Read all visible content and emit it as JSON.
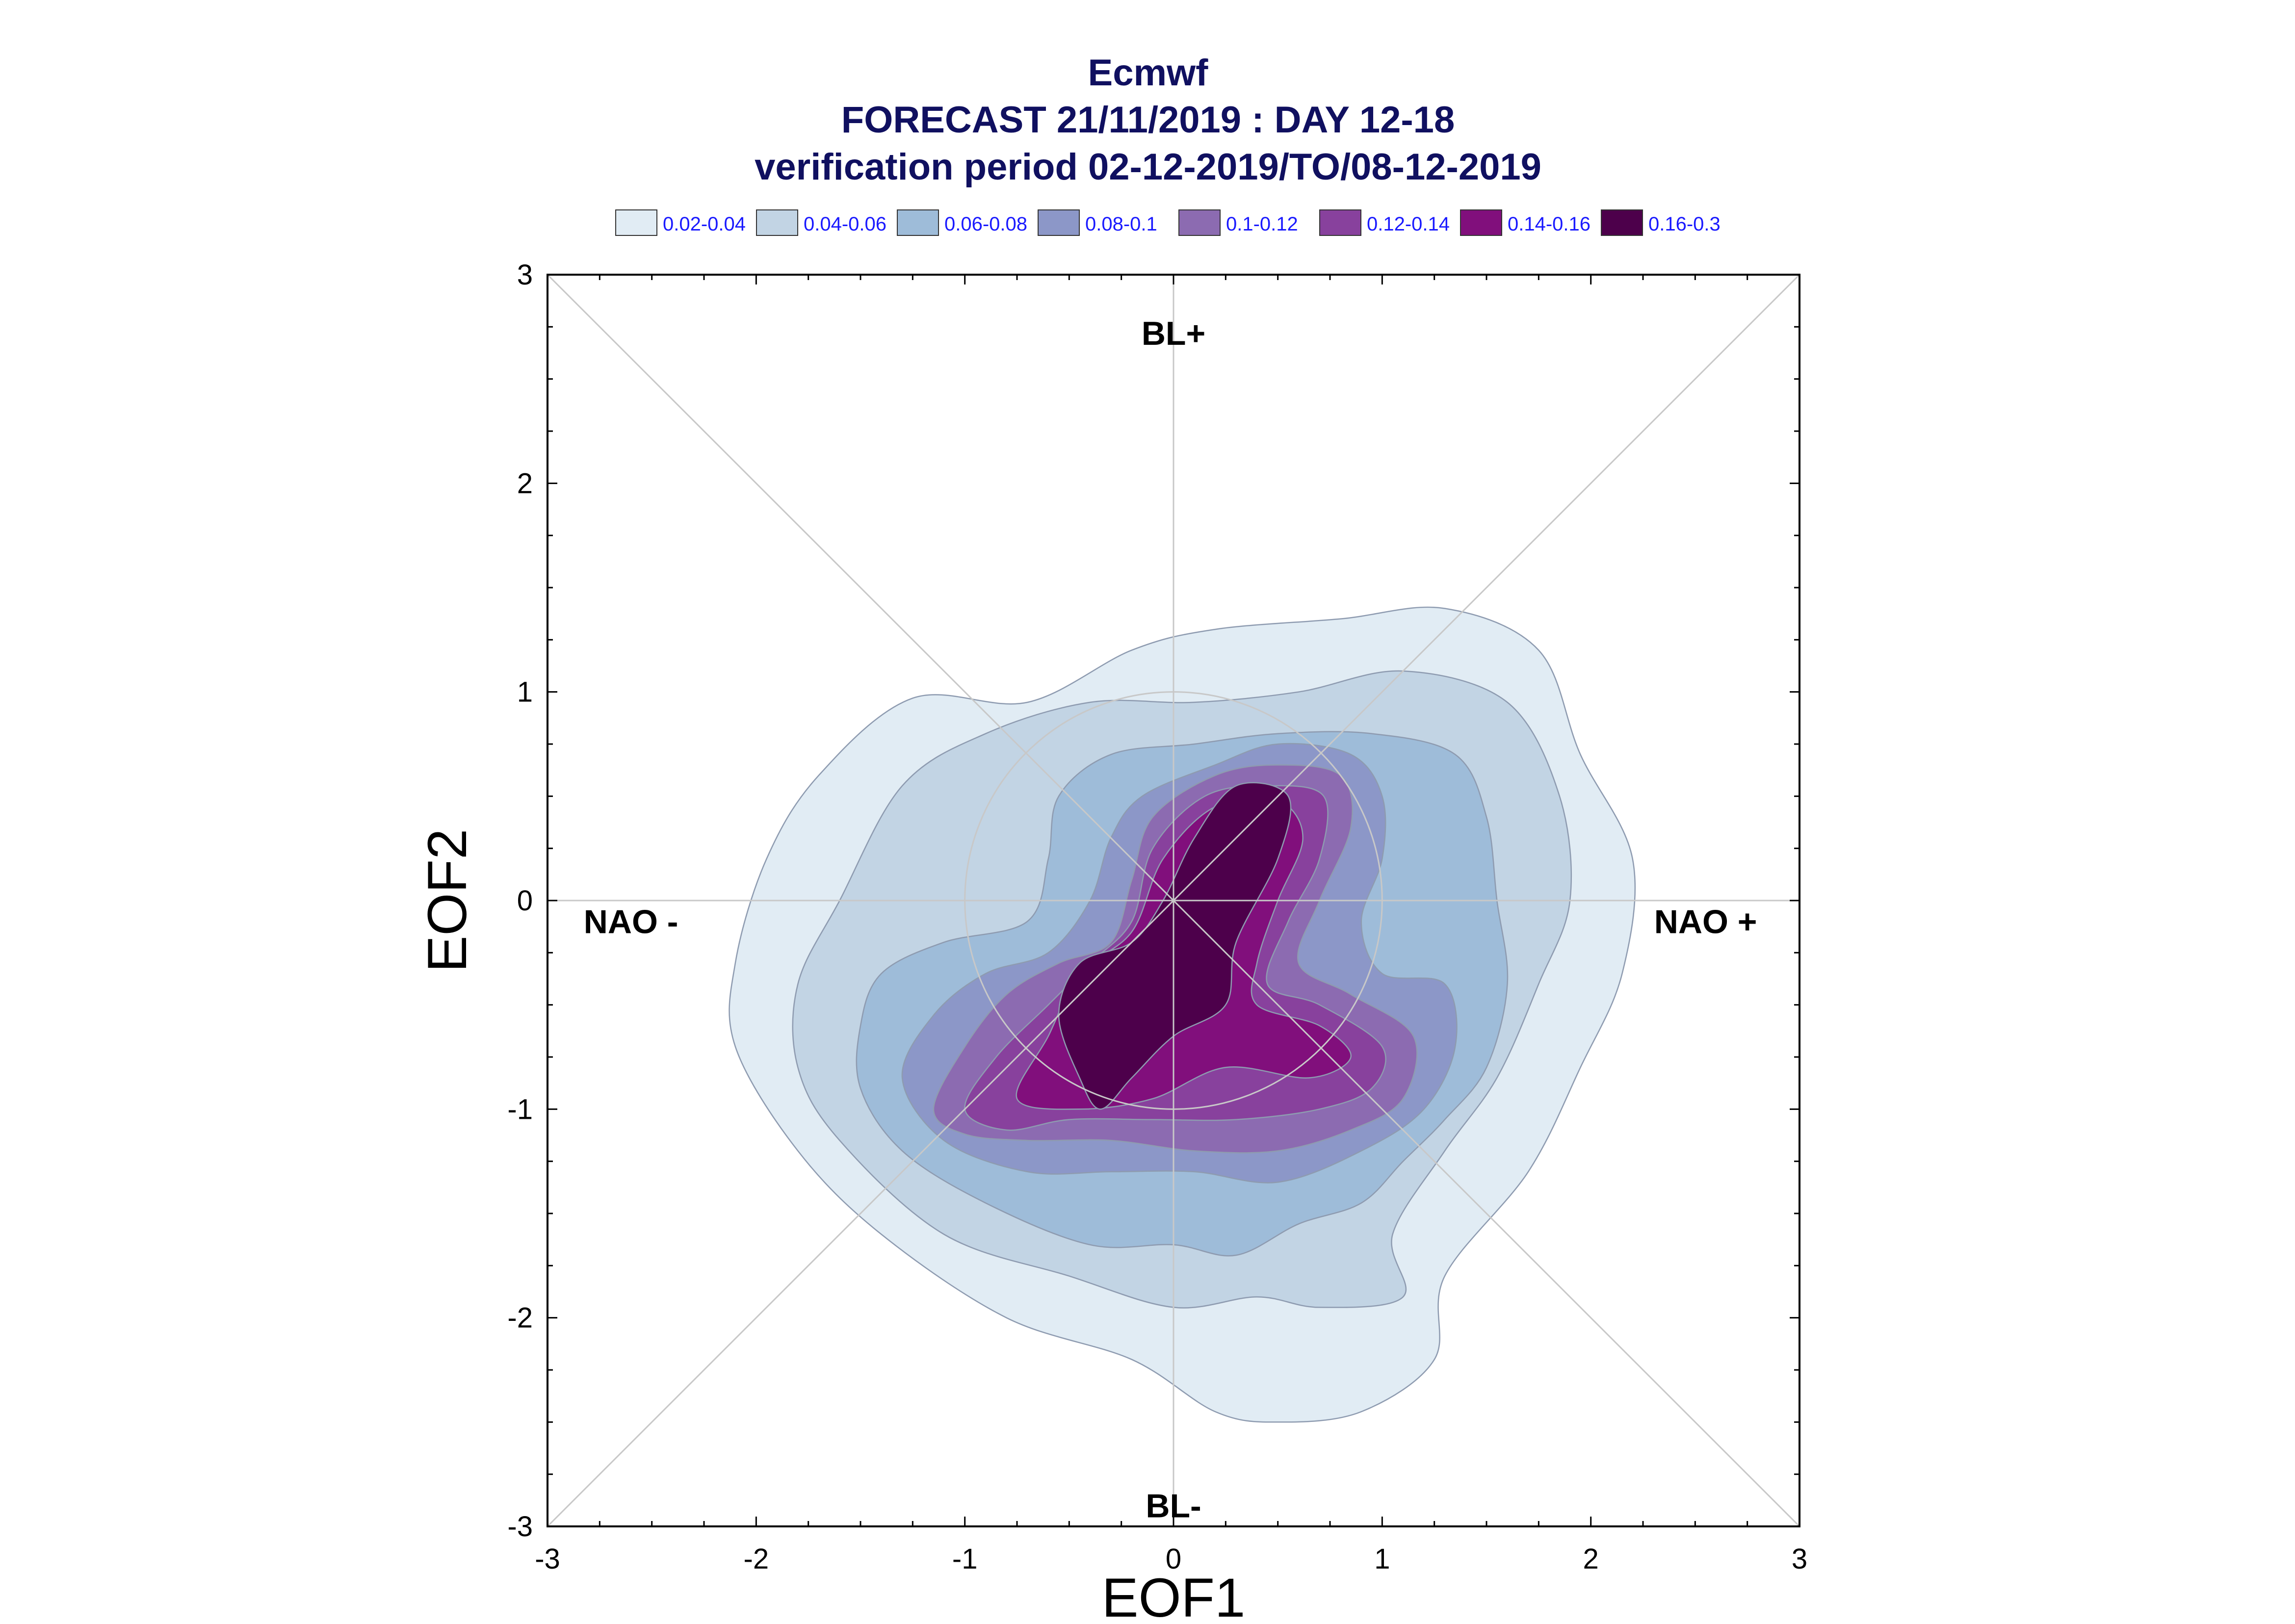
{
  "chart_data": {
    "type": "contour",
    "title": "Ecmwf",
    "subtitle_1": "FORECAST 21/11/2019 : DAY 12-18",
    "subtitle_2": "verification period 02-12-2019/TO/08-12-2019",
    "xlabel": "EOF1",
    "ylabel": "EOF2",
    "xlim": [
      -3,
      3
    ],
    "ylim": [
      -3,
      3
    ],
    "x_ticks": [
      "-3",
      "-2",
      "-1",
      "0",
      "1",
      "2",
      "3"
    ],
    "y_ticks": [
      "-3",
      "-2",
      "-1",
      "0",
      "1",
      "2",
      "3"
    ],
    "regime_labels": [
      {
        "text": "BL+",
        "x": 0,
        "y": 2.72
      },
      {
        "text": "BL-",
        "x": 0,
        "y": -2.9
      },
      {
        "text": "NAO -",
        "x": -2.6,
        "y": -0.1
      },
      {
        "text": "NAO +",
        "x": 2.55,
        "y": -0.1
      }
    ],
    "reference_circle_radius": 1.0,
    "legend": {
      "placement": "top",
      "entries": [
        {
          "label": "0.02-0.04",
          "color": "#e1ecf4"
        },
        {
          "label": "0.04-0.06",
          "color": "#c2d4e4"
        },
        {
          "label": "0.06-0.08",
          "color": "#9ebcd9"
        },
        {
          "label": "0.08-0.1",
          "color": "#8c97c8"
        },
        {
          "label": "0.1-0.12",
          "color": "#8c6bb1"
        },
        {
          "label": "0.12-0.14",
          "color": "#88419d"
        },
        {
          "label": "0.14-0.16",
          "color": "#810f7c"
        },
        {
          "label": "0.16-0.3",
          "color": "#4d004b"
        }
      ]
    },
    "contours": [
      {
        "level": "0.02-0.04",
        "color": "#e1ecf4",
        "points": [
          [
            -2.1,
            -0.3
          ],
          [
            -1.95,
            0.2
          ],
          [
            -1.7,
            0.6
          ],
          [
            -1.25,
            0.97
          ],
          [
            -0.7,
            0.95
          ],
          [
            -0.2,
            1.2
          ],
          [
            0.2,
            1.3
          ],
          [
            0.8,
            1.35
          ],
          [
            1.3,
            1.4
          ],
          [
            1.75,
            1.2
          ],
          [
            1.95,
            0.7
          ],
          [
            2.2,
            0.2
          ],
          [
            2.15,
            -0.35
          ],
          [
            1.95,
            -0.8
          ],
          [
            1.7,
            -1.3
          ],
          [
            1.3,
            -1.8
          ],
          [
            1.25,
            -2.2
          ],
          [
            0.9,
            -2.45
          ],
          [
            0.5,
            -2.5
          ],
          [
            0.2,
            -2.45
          ],
          [
            -0.2,
            -2.2
          ],
          [
            -0.8,
            -2.0
          ],
          [
            -1.4,
            -1.6
          ],
          [
            -1.8,
            -1.2
          ],
          [
            -2.1,
            -0.7
          ]
        ]
      },
      {
        "level": "0.04-0.06",
        "color": "#c2d4e4",
        "points": [
          [
            -1.8,
            -0.4
          ],
          [
            -1.6,
            0.0
          ],
          [
            -1.3,
            0.55
          ],
          [
            -0.9,
            0.8
          ],
          [
            -0.4,
            0.95
          ],
          [
            0.1,
            0.95
          ],
          [
            0.6,
            1.0
          ],
          [
            1.1,
            1.1
          ],
          [
            1.6,
            0.95
          ],
          [
            1.85,
            0.5
          ],
          [
            1.9,
            0.0
          ],
          [
            1.75,
            -0.4
          ],
          [
            1.55,
            -0.85
          ],
          [
            1.3,
            -1.2
          ],
          [
            1.05,
            -1.6
          ],
          [
            1.1,
            -1.9
          ],
          [
            0.7,
            -1.95
          ],
          [
            0.4,
            -1.9
          ],
          [
            0.0,
            -1.95
          ],
          [
            -0.5,
            -1.8
          ],
          [
            -1.1,
            -1.6
          ],
          [
            -1.6,
            -1.15
          ],
          [
            -1.8,
            -0.8
          ]
        ]
      },
      {
        "level": "0.06-0.08",
        "color": "#9ebcd9",
        "points": [
          [
            -1.5,
            -0.6
          ],
          [
            -1.4,
            -0.35
          ],
          [
            -1.1,
            -0.2
          ],
          [
            -0.7,
            -0.1
          ],
          [
            -0.6,
            0.2
          ],
          [
            -0.55,
            0.5
          ],
          [
            -0.3,
            0.7
          ],
          [
            0.1,
            0.75
          ],
          [
            0.5,
            0.8
          ],
          [
            0.95,
            0.8
          ],
          [
            1.35,
            0.7
          ],
          [
            1.5,
            0.4
          ],
          [
            1.55,
            0.0
          ],
          [
            1.6,
            -0.4
          ],
          [
            1.5,
            -0.8
          ],
          [
            1.3,
            -1.05
          ],
          [
            1.1,
            -1.25
          ],
          [
            0.9,
            -1.45
          ],
          [
            0.6,
            -1.55
          ],
          [
            0.3,
            -1.7
          ],
          [
            0.0,
            -1.65
          ],
          [
            -0.4,
            -1.65
          ],
          [
            -0.9,
            -1.45
          ],
          [
            -1.3,
            -1.2
          ],
          [
            -1.5,
            -0.9
          ]
        ]
      },
      {
        "level": "0.08-0.1",
        "color": "#8c97c8",
        "points": [
          [
            -1.3,
            -0.85
          ],
          [
            -1.15,
            -0.55
          ],
          [
            -0.9,
            -0.35
          ],
          [
            -0.6,
            -0.25
          ],
          [
            -0.4,
            0.0
          ],
          [
            -0.3,
            0.3
          ],
          [
            -0.15,
            0.5
          ],
          [
            0.2,
            0.65
          ],
          [
            0.5,
            0.75
          ],
          [
            0.85,
            0.7
          ],
          [
            1.0,
            0.5
          ],
          [
            1.0,
            0.2
          ],
          [
            0.9,
            -0.1
          ],
          [
            1.0,
            -0.35
          ],
          [
            1.3,
            -0.4
          ],
          [
            1.35,
            -0.7
          ],
          [
            1.2,
            -1.0
          ],
          [
            0.9,
            -1.2
          ],
          [
            0.5,
            -1.35
          ],
          [
            0.1,
            -1.3
          ],
          [
            -0.3,
            -1.3
          ],
          [
            -0.7,
            -1.3
          ],
          [
            -1.1,
            -1.15
          ]
        ]
      },
      {
        "level": "0.1-0.12",
        "color": "#8c6bb1",
        "points": [
          [
            -1.15,
            -1.0
          ],
          [
            -1.0,
            -0.7
          ],
          [
            -0.8,
            -0.45
          ],
          [
            -0.55,
            -0.3
          ],
          [
            -0.3,
            -0.2
          ],
          [
            -0.2,
            0.1
          ],
          [
            -0.1,
            0.4
          ],
          [
            0.2,
            0.6
          ],
          [
            0.5,
            0.65
          ],
          [
            0.8,
            0.6
          ],
          [
            0.85,
            0.35
          ],
          [
            0.7,
            0.0
          ],
          [
            0.6,
            -0.3
          ],
          [
            0.85,
            -0.45
          ],
          [
            1.15,
            -0.65
          ],
          [
            1.1,
            -0.95
          ],
          [
            0.85,
            -1.1
          ],
          [
            0.5,
            -1.2
          ],
          [
            0.1,
            -1.2
          ],
          [
            -0.3,
            -1.15
          ],
          [
            -0.7,
            -1.15
          ],
          [
            -1.0,
            -1.12
          ]
        ]
      },
      {
        "level": "0.12-0.14",
        "color": "#88419d",
        "points": [
          [
            -1.0,
            -1.0
          ],
          [
            -0.85,
            -0.75
          ],
          [
            -0.6,
            -0.5
          ],
          [
            -0.4,
            -0.3
          ],
          [
            -0.2,
            -0.1
          ],
          [
            -0.1,
            0.25
          ],
          [
            0.15,
            0.5
          ],
          [
            0.45,
            0.55
          ],
          [
            0.72,
            0.5
          ],
          [
            0.7,
            0.2
          ],
          [
            0.55,
            -0.1
          ],
          [
            0.45,
            -0.4
          ],
          [
            0.7,
            -0.5
          ],
          [
            1.0,
            -0.7
          ],
          [
            0.95,
            -0.9
          ],
          [
            0.7,
            -1.0
          ],
          [
            0.3,
            -1.05
          ],
          [
            -0.1,
            -1.05
          ],
          [
            -0.5,
            -1.05
          ],
          [
            -0.8,
            -1.1
          ]
        ]
      },
      {
        "level": "0.14-0.16",
        "color": "#810f7c",
        "points": [
          [
            -0.75,
            -0.95
          ],
          [
            -0.6,
            -0.65
          ],
          [
            -0.45,
            -0.35
          ],
          [
            -0.2,
            -0.15
          ],
          [
            -0.05,
            0.2
          ],
          [
            0.2,
            0.45
          ],
          [
            0.5,
            0.48
          ],
          [
            0.62,
            0.3
          ],
          [
            0.5,
            0.0
          ],
          [
            0.4,
            -0.3
          ],
          [
            0.4,
            -0.5
          ],
          [
            0.7,
            -0.6
          ],
          [
            0.85,
            -0.75
          ],
          [
            0.65,
            -0.85
          ],
          [
            0.25,
            -0.8
          ],
          [
            -0.1,
            -0.95
          ],
          [
            -0.45,
            -1.0
          ]
        ]
      },
      {
        "level": "0.16-0.3",
        "color": "#4d004b",
        "points": [
          [
            -0.45,
            -0.85
          ],
          [
            -0.55,
            -0.55
          ],
          [
            -0.45,
            -0.3
          ],
          [
            -0.2,
            -0.2
          ],
          [
            -0.05,
            0.0
          ],
          [
            0.1,
            0.3
          ],
          [
            0.3,
            0.55
          ],
          [
            0.55,
            0.5
          ],
          [
            0.5,
            0.2
          ],
          [
            0.3,
            -0.2
          ],
          [
            0.25,
            -0.5
          ],
          [
            0.0,
            -0.65
          ],
          [
            -0.2,
            -0.85
          ],
          [
            -0.35,
            -1.0
          ]
        ]
      }
    ]
  }
}
